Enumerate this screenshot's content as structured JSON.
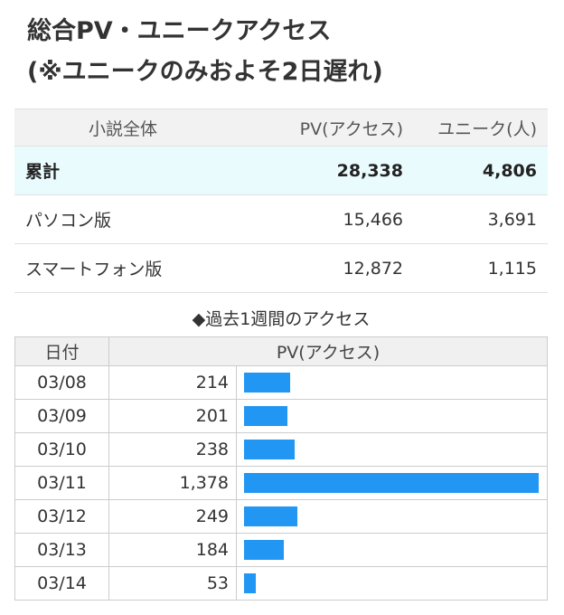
{
  "title": {
    "line1": "総合PV・ユニークアクセス",
    "line2": "(※ユニークのみおよそ2日遅れ)"
  },
  "summary": {
    "headers": [
      "小説全体",
      "PV(アクセス)",
      "ユニーク(人)"
    ],
    "rows": [
      {
        "label": "累計",
        "pv": "28,338",
        "unique": "4,806"
      },
      {
        "label": "パソコン版",
        "pv": "15,466",
        "unique": "3,691"
      },
      {
        "label": "スマートフォン版",
        "pv": "12,872",
        "unique": "1,115"
      }
    ]
  },
  "weekly": {
    "title": "◆過去1週間のアクセス",
    "headers": [
      "日付",
      "PV(アクセス)"
    ],
    "bar_color": "#2196f3",
    "rows": [
      {
        "date": "03/08",
        "pv_label": "214",
        "pv": 214
      },
      {
        "date": "03/09",
        "pv_label": "201",
        "pv": 201
      },
      {
        "date": "03/10",
        "pv_label": "238",
        "pv": 238
      },
      {
        "date": "03/11",
        "pv_label": "1,378",
        "pv": 1378
      },
      {
        "date": "03/12",
        "pv_label": "249",
        "pv": 249
      },
      {
        "date": "03/13",
        "pv_label": "184",
        "pv": 184
      },
      {
        "date": "03/14",
        "pv_label": "53",
        "pv": 53
      }
    ]
  }
}
